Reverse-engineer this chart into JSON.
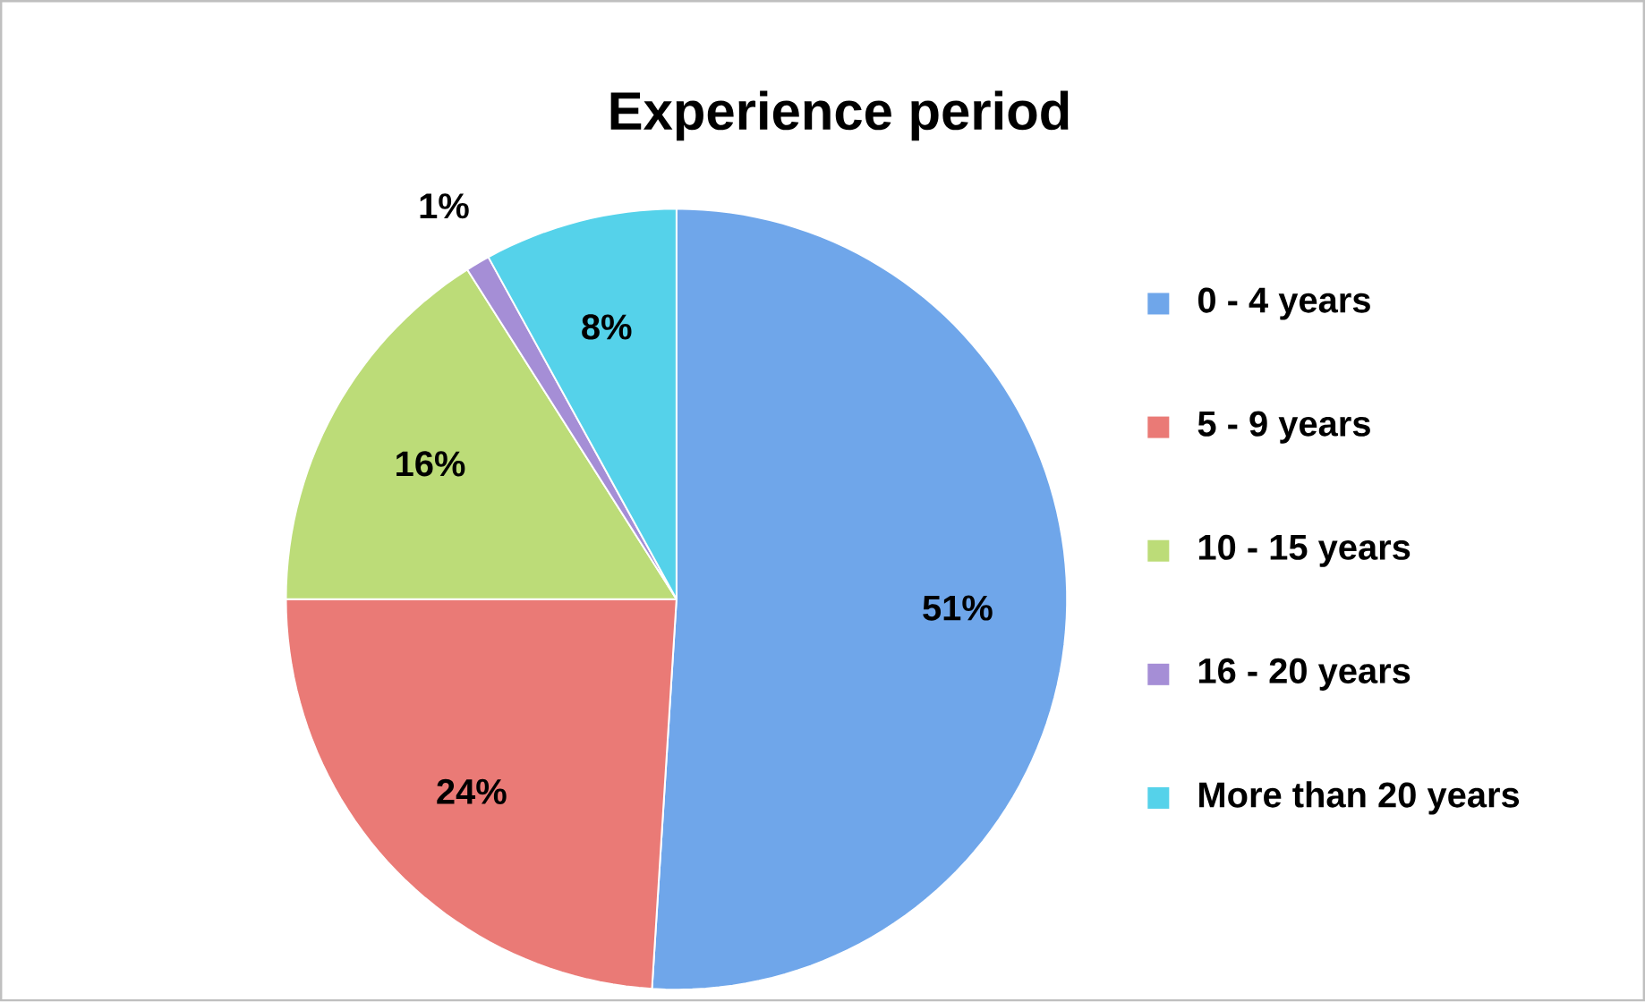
{
  "chart_data": {
    "type": "pie",
    "title": "Experience period",
    "categories": [
      "0 - 4 years",
      "5 - 9 years",
      "10 - 15 years",
      "16 - 20 years",
      "More than 20 years"
    ],
    "values": [
      51,
      24,
      16,
      1,
      8
    ],
    "colors": [
      "#6fa6ea",
      "#ea7a76",
      "#bcdc78",
      "#a58ed6",
      "#55d2ea"
    ],
    "value_labels": [
      "51%",
      "24%",
      "16%",
      "1%",
      "8%"
    ],
    "legend": "right"
  }
}
